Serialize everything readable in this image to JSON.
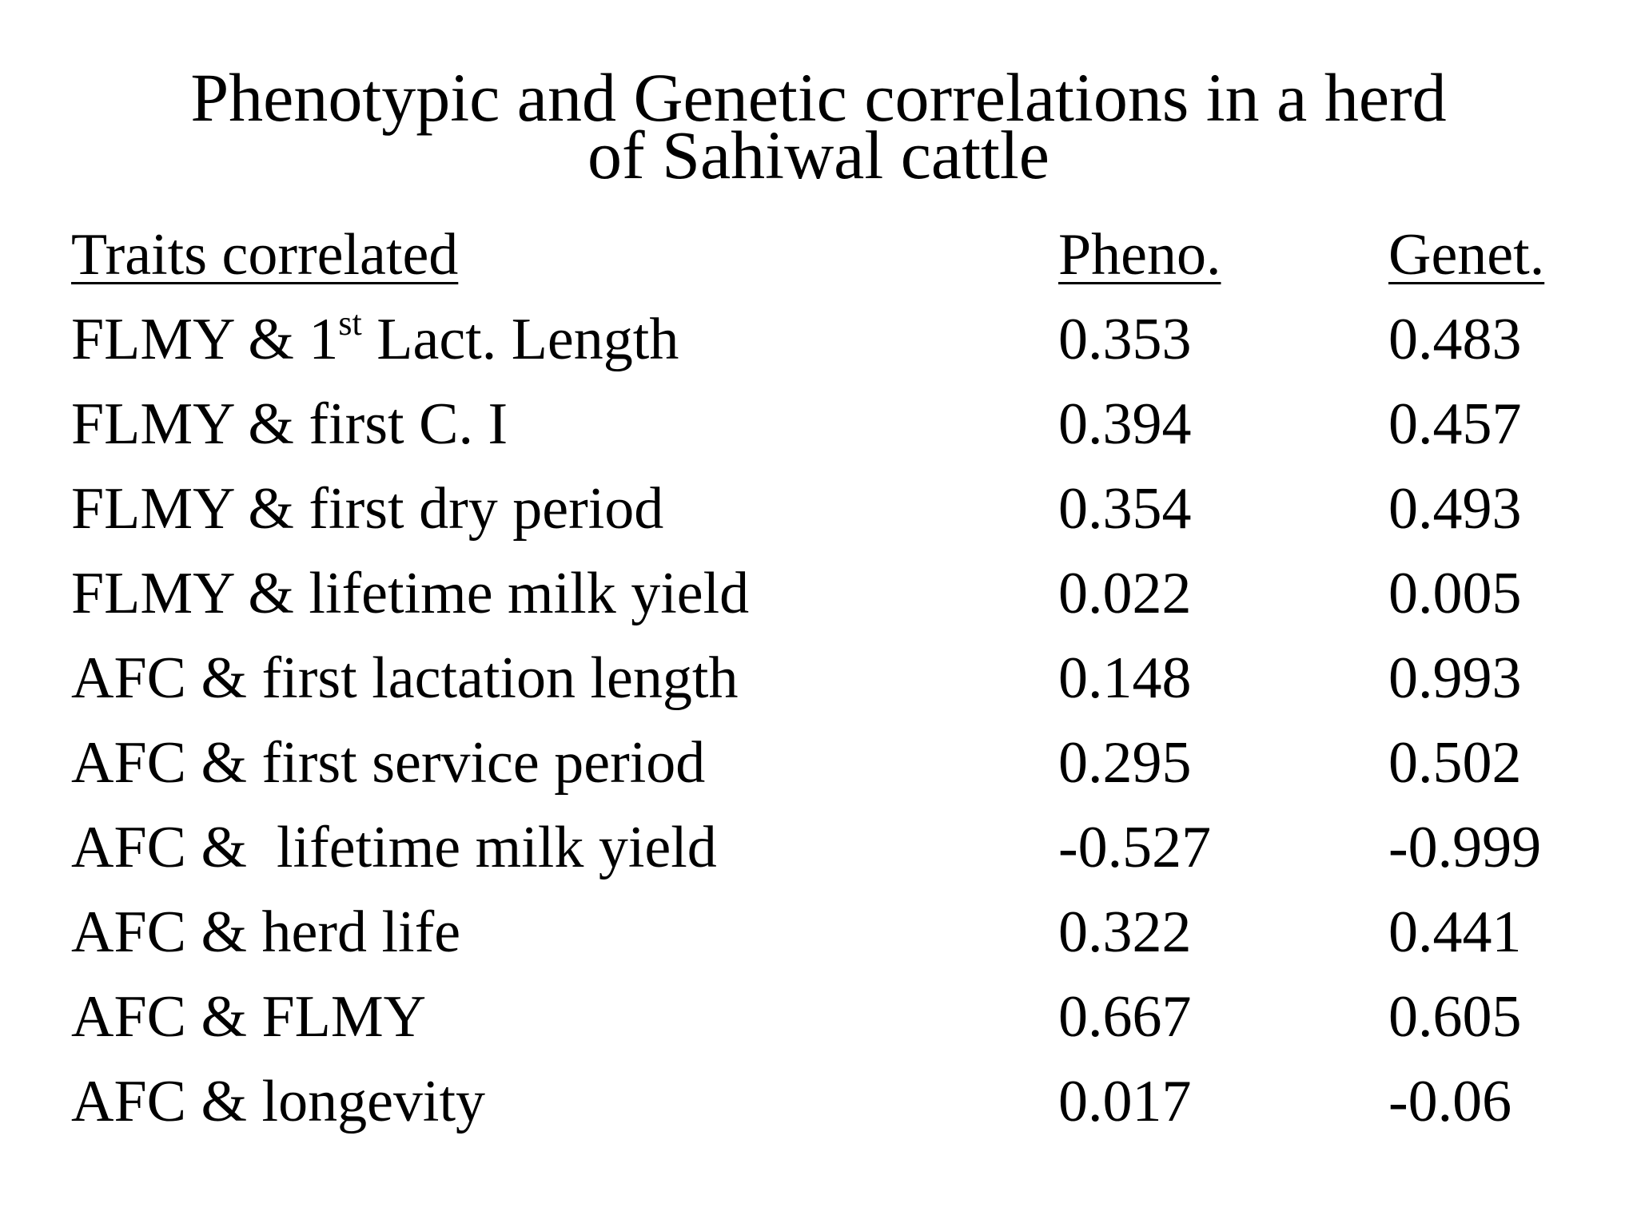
{
  "title": {
    "line1": "Phenotypic and Genetic correlations in a herd",
    "line2": "of Sahiwal cattle"
  },
  "table": {
    "headers": {
      "trait": "Traits correlated",
      "pheno": "Pheno.",
      "genet": "Genet."
    },
    "first_row_trait": {
      "before": "FLMY & 1",
      "sup": "st",
      "after": " Lact. Length"
    },
    "rows": [
      {
        "trait": "FLMY & 1st Lact. Length",
        "pheno": "0.353",
        "genet": "0.483"
      },
      {
        "trait": "FLMY & first C. I",
        "pheno": "0.394",
        "genet": "0.457"
      },
      {
        "trait": "FLMY & first dry period",
        "pheno": "0.354",
        "genet": "0.493"
      },
      {
        "trait": "FLMY & lifetime milk yield",
        "pheno": "0.022",
        "genet": "0.005"
      },
      {
        "trait": "AFC & first lactation length",
        "pheno": "0.148",
        "genet": "0.993"
      },
      {
        "trait": "AFC & first service period",
        "pheno": "0.295",
        "genet": "0.502"
      },
      {
        "trait": "AFC &  lifetime milk yield",
        "pheno": "-0.527",
        "genet": "-0.999"
      },
      {
        "trait": "AFC & herd life",
        "pheno": "0.322",
        "genet": "0.441"
      },
      {
        "trait": "AFC & FLMY",
        "pheno": "0.667",
        "genet": "0.605"
      },
      {
        "trait": "AFC & longevity",
        "pheno": "0.017",
        "genet": "-0.06"
      }
    ]
  }
}
